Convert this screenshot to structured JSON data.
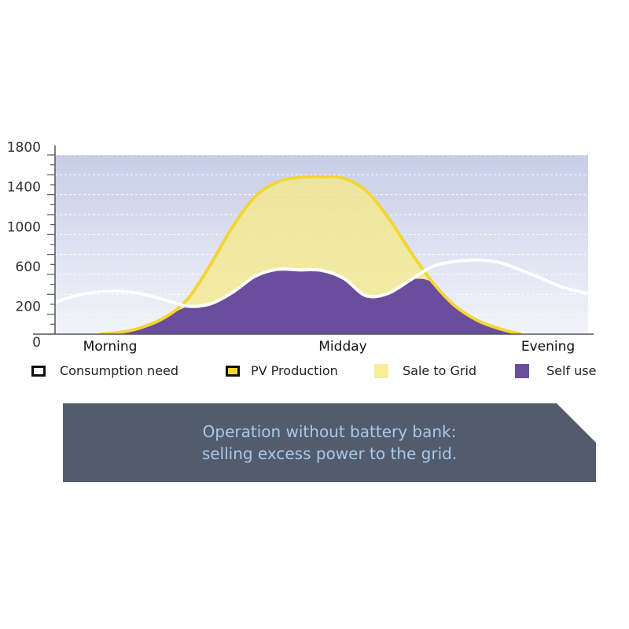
{
  "chart_data": {
    "type": "area",
    "title": "",
    "xlabel": "",
    "ylabel": "",
    "ylim": [
      0,
      1800
    ],
    "y_tick_labels": [
      "0",
      "200",
      "600",
      "1000",
      "1400",
      "1800"
    ],
    "categories": [
      "Morning",
      "Midday",
      "Evening"
    ],
    "x": [
      0,
      1,
      2,
      3,
      4,
      5,
      6,
      7,
      8,
      9,
      10,
      11,
      12,
      13,
      14,
      15,
      16,
      17,
      18,
      19,
      20,
      21,
      22,
      23,
      24
    ],
    "series": [
      {
        "name": "Consumption need",
        "values": [
          320,
          390,
          425,
          430,
          400,
          340,
          280,
          305,
          420,
          580,
          650,
          645,
          640,
          560,
          385,
          410,
          545,
          680,
          730,
          745,
          720,
          640,
          550,
          460,
          410
        ]
      },
      {
        "name": "PV Production",
        "values": [
          0,
          0,
          0,
          20,
          75,
          175,
          360,
          700,
          1080,
          1380,
          1525,
          1575,
          1580,
          1565,
          1440,
          1170,
          830,
          520,
          285,
          140,
          55,
          0,
          0,
          0,
          0
        ]
      }
    ],
    "grid": true,
    "legend_position": "bottom"
  },
  "legend": {
    "consumption": "Consumption need",
    "pv": "PV Production",
    "sale": "Sale to Grid",
    "self": "Self use"
  },
  "banner": {
    "line1": "Operation without battery bank:",
    "line2": "selling excess power to the grid."
  },
  "colors": {
    "self_use": "#6b4d9e",
    "sale_to_grid": "#f5ea8a",
    "pv_line": "#f3d634",
    "consumption_line": "#ffffff",
    "banner": "#525c6d",
    "banner_text": "#a9c8ea",
    "plot_top": "#c7cde7",
    "plot_bottom": "#f3f4fa"
  }
}
